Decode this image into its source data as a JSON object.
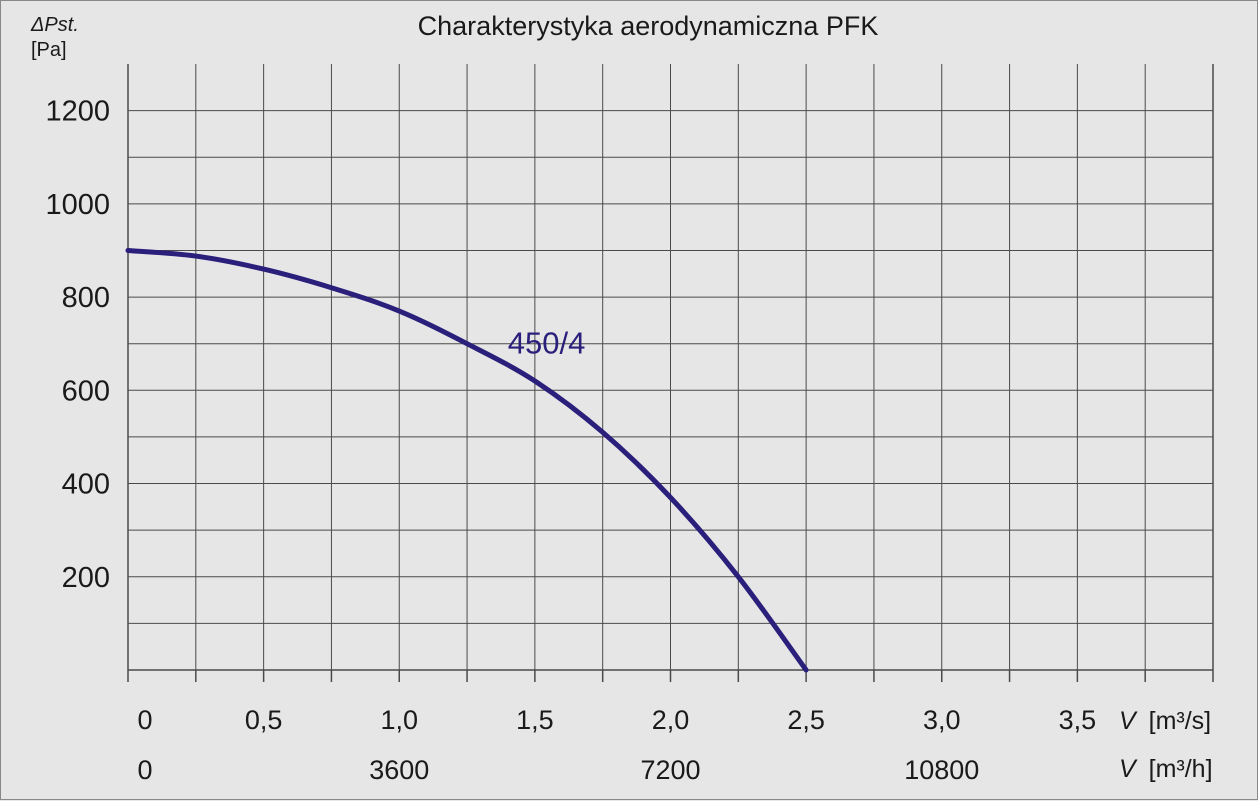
{
  "colors": {
    "background": "#e6e6e6",
    "grid": "#4a4a4a",
    "curve": "#2a1f7a",
    "text": "#1a1a1a"
  },
  "chart_data": {
    "type": "line",
    "title": "Charakterystyka aerodynamiczna PFK",
    "ylabel_symbol": "ΔPst.",
    "yunit": "[Pa]",
    "xlabel_symbol": "V",
    "xunit_primary": "[m³/s]",
    "xunit_secondary": "[m³/h]",
    "xlim": [
      0,
      4
    ],
    "ylim": [
      0,
      1300
    ],
    "y_ticks": [
      200,
      400,
      600,
      800,
      1000,
      1200
    ],
    "y_tick_labels": [
      "200",
      "400",
      "600",
      "800",
      "1000",
      "1200"
    ],
    "x_ticks_primary": [
      0,
      0.5,
      1.0,
      1.5,
      2.0,
      2.5,
      3.0,
      3.5
    ],
    "x_tick_labels_primary": [
      "0",
      "0,5",
      "1,0",
      "1,5",
      "2,0",
      "2,5",
      "3,0",
      "3,5"
    ],
    "x_ticks_secondary": [
      0,
      1.0,
      2.0,
      3.0
    ],
    "x_tick_labels_secondary": [
      "0",
      "3600",
      "7200",
      "10800"
    ],
    "grid": true,
    "series": [
      {
        "name": "450/4",
        "x": [
          0,
          0.25,
          0.5,
          0.75,
          1.0,
          1.25,
          1.5,
          1.75,
          2.0,
          2.25,
          2.5
        ],
        "y": [
          900,
          888,
          860,
          820,
          770,
          700,
          620,
          510,
          370,
          200,
          0
        ]
      }
    ],
    "annotations": [
      {
        "text": "450/4",
        "x": 1.4,
        "y": 700
      }
    ]
  }
}
